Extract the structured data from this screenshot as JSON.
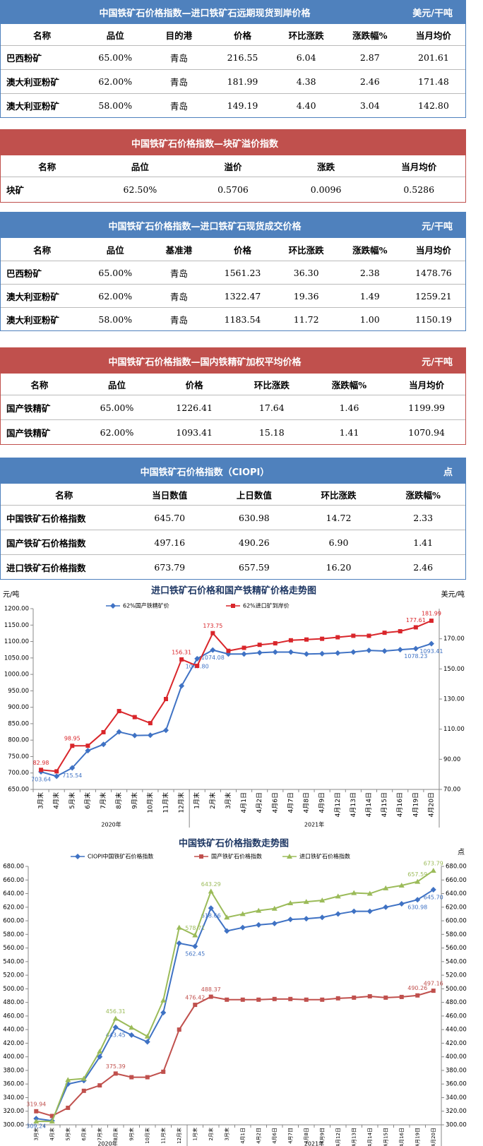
{
  "tables": [
    {
      "title": "中国铁矿石价格指数—进口铁矿石远期现货到岸价格",
      "unit": "美元/干吨",
      "color": "#4f81bd",
      "columns": [
        "名称",
        "品位",
        "目的港",
        "价格",
        "环比涨跌",
        "涨跌幅%",
        "当月均价"
      ],
      "rows": [
        [
          "巴西粉矿",
          "65.00%",
          "青岛",
          "216.55",
          "6.04",
          "2.87",
          "201.61"
        ],
        [
          "澳大利亚粉矿",
          "62.00%",
          "青岛",
          "181.99",
          "4.38",
          "2.46",
          "171.48"
        ],
        [
          "澳大利亚粉矿",
          "58.00%",
          "青岛",
          "149.19",
          "4.40",
          "3.04",
          "142.80"
        ]
      ]
    },
    {
      "title": "中国铁矿石价格指数—块矿溢价指数",
      "color": "#c0504d",
      "columns": [
        "名称",
        "品位",
        "溢价",
        "涨跌",
        "当月均价"
      ],
      "rows": [
        [
          "块矿",
          "62.50%",
          "0.5706",
          "0.0096",
          "0.5286"
        ]
      ]
    },
    {
      "title": "中国铁矿石价格指数—进口铁矿石现货成交价格",
      "unit": "元/干吨",
      "color": "#4f81bd",
      "columns": [
        "名称",
        "品位",
        "基准港",
        "价格",
        "环比涨跌",
        "涨跌幅%",
        "当月均价"
      ],
      "rows": [
        [
          "巴西粉矿",
          "65.00%",
          "青岛",
          "1561.23",
          "36.30",
          "2.38",
          "1478.76"
        ],
        [
          "澳大利亚粉矿",
          "62.00%",
          "青岛",
          "1322.47",
          "19.36",
          "1.49",
          "1259.21"
        ],
        [
          "澳大利亚粉矿",
          "58.00%",
          "青岛",
          "1183.54",
          "11.72",
          "1.00",
          "1150.19"
        ]
      ]
    },
    {
      "title": "中国铁矿石价格指数—国内铁精矿加权平均价格",
      "unit": "元/干吨",
      "color": "#c0504d",
      "columns": [
        "名称",
        "品位",
        "价格",
        "环比涨跌",
        "涨跌幅%",
        "当月均价"
      ],
      "rows": [
        [
          "国产铁精矿",
          "65.00%",
          "1226.41",
          "17.64",
          "1.46",
          "1199.99"
        ],
        [
          "国产铁精矿",
          "62.00%",
          "1093.41",
          "15.18",
          "1.41",
          "1070.94"
        ]
      ]
    },
    {
      "title": "中国铁矿石价格指数（CIOPI）",
      "unit": "点",
      "color": "#4f81bd",
      "columns": [
        "名称",
        "当日数值",
        "上日数值",
        "环比涨跌",
        "涨跌幅%"
      ],
      "rows": [
        [
          "中国铁矿石价格指数",
          "645.70",
          "630.98",
          "14.72",
          "2.33"
        ],
        [
          "国产铁矿石价格指数",
          "497.16",
          "490.26",
          "6.90",
          "1.41"
        ],
        [
          "进口铁矿石价格指数",
          "673.79",
          "657.59",
          "16.20",
          "2.46"
        ]
      ]
    }
  ],
  "chart_data": [
    {
      "type": "line",
      "title": "进口铁矿石价格和国产铁精矿价格走势图",
      "ylabel": "元/吨",
      "y2label": "美元/吨",
      "grid": false,
      "categories": [
        "3月末",
        "4月末",
        "5月末",
        "6月末",
        "7月末",
        "8月末",
        "9月末",
        "10月末",
        "11月末",
        "12月末",
        "1月末",
        "2月末",
        "3月末",
        "4月1日",
        "4月2日",
        "4月6日",
        "4月7日",
        "4月8日",
        "4月9日",
        "4月12日",
        "4月13日",
        "4月14日",
        "4月15日",
        "4月16日",
        "4月19日",
        "4月20日"
      ],
      "x_groups": [
        {
          "label": "2020年",
          "first": 0,
          "last": 9
        },
        {
          "label": "2021年",
          "first": 10,
          "last": 25
        }
      ],
      "ylim": [
        650,
        1200
      ],
      "yticks": [
        {
          "value": 650,
          "label": "650.00"
        },
        {
          "value": 700,
          "label": "700.00"
        },
        {
          "value": 750,
          "label": "750.00"
        },
        {
          "value": 800,
          "label": "800.00"
        },
        {
          "value": 850,
          "label": "850.00"
        },
        {
          "value": 900,
          "label": "900.00"
        },
        {
          "value": 950,
          "label": "950.00"
        },
        {
          "value": 1000,
          "label": "1000.00"
        },
        {
          "value": 1050,
          "label": "1050.00"
        },
        {
          "value": 1100,
          "label": "1100.00"
        },
        {
          "value": 1150,
          "label": "1150.00"
        },
        {
          "value": 1200,
          "label": "1200.00"
        }
      ],
      "y2lim": [
        70,
        190
      ],
      "y2ticks": [
        {
          "value": 70,
          "label": "70.00"
        },
        {
          "value": 90,
          "label": "90.00"
        },
        {
          "value": 110,
          "label": "110.00"
        },
        {
          "value": 130,
          "label": "130.00"
        },
        {
          "value": 150,
          "label": "150.00"
        },
        {
          "value": 170,
          "label": "170.00"
        }
      ],
      "series": [
        {
          "name": "62%国产铁精矿价",
          "color": "#3f72c4",
          "marker": "diamond",
          "label_position": "below",
          "values": [
            703.64,
            690,
            715.54,
            768,
            787,
            825,
            814,
            815,
            830,
            965,
            1047.8,
            1074.08,
            1062,
            1062,
            1066,
            1068,
            1068,
            1062,
            1063,
            1065,
            1068,
            1073,
            1071,
            1075,
            1078.23,
            1093.41
          ],
          "value_labels": [
            "703.64",
            null,
            "715.54",
            null,
            null,
            null,
            null,
            null,
            null,
            null,
            "1047.80",
            "1074.08",
            null,
            null,
            null,
            null,
            null,
            null,
            null,
            null,
            null,
            null,
            null,
            null,
            "1078.23",
            "1093.41"
          ]
        },
        {
          "name": "62%进口矿到岸价",
          "color": "#d9262b",
          "marker": "square",
          "axis": "y2",
          "label_position": "above",
          "values": [
            82.98,
            82,
            98.95,
            99,
            108,
            122,
            118,
            114,
            130,
            156.31,
            152,
            173.75,
            162,
            164,
            166,
            167,
            169,
            169.5,
            170,
            171,
            172,
            172,
            174,
            175,
            177.61,
            181.99
          ],
          "value_labels": [
            "82.98",
            null,
            "98.95",
            null,
            null,
            null,
            null,
            null,
            null,
            "156.31",
            null,
            "173.75",
            null,
            null,
            null,
            null,
            null,
            null,
            null,
            null,
            null,
            null,
            null,
            null,
            "177.61",
            "181.99"
          ]
        }
      ]
    },
    {
      "type": "line",
      "title": "中国铁矿石价格指数走势图",
      "y2label": "点",
      "grid": false,
      "categories": [
        "3月末",
        "4月末",
        "5月末",
        "6月末",
        "7月末",
        "8月末",
        "9月末",
        "10月末",
        "11月末",
        "12月末",
        "1月末",
        "2月末",
        "3月末",
        "4月1日",
        "4月2日",
        "4月6日",
        "4月7日",
        "4月8日",
        "4月9日",
        "4月12日",
        "4月13日",
        "4月14日",
        "4月15日",
        "4月16日",
        "4月19日",
        "4月20日"
      ],
      "x_groups": [
        {
          "label": "2020年",
          "first": 0,
          "last": 9
        },
        {
          "label": "2021年",
          "first": 10,
          "last": 25
        }
      ],
      "ylim": [
        300,
        680
      ],
      "yticks": [
        {
          "value": 300,
          "label": "300.00"
        },
        {
          "value": 320,
          "label": "320.00"
        },
        {
          "value": 340,
          "label": "340.00"
        },
        {
          "value": 360,
          "label": "360.00"
        },
        {
          "value": 380,
          "label": "380.00"
        },
        {
          "value": 400,
          "label": "400.00"
        },
        {
          "value": 420,
          "label": "420.00"
        },
        {
          "value": 440,
          "label": "440.00"
        },
        {
          "value": 460,
          "label": "460.00"
        },
        {
          "value": 480,
          "label": "480.00"
        },
        {
          "value": 500,
          "label": "500.00"
        },
        {
          "value": 520,
          "label": "520.00"
        },
        {
          "value": 540,
          "label": "540.00"
        },
        {
          "value": 560,
          "label": "560.00"
        },
        {
          "value": 580,
          "label": "580.00"
        },
        {
          "value": 600,
          "label": "600.00"
        },
        {
          "value": 620,
          "label": "620.00"
        },
        {
          "value": 640,
          "label": "640.00"
        },
        {
          "value": 660,
          "label": "660.00"
        },
        {
          "value": 680,
          "label": "680.00"
        }
      ],
      "y2lim": [
        300,
        680
      ],
      "y2ticks": [
        {
          "value": 300,
          "label": "300.00"
        },
        {
          "value": 320,
          "label": "320.00"
        },
        {
          "value": 340,
          "label": "340.00"
        },
        {
          "value": 360,
          "label": "360.00"
        },
        {
          "value": 380,
          "label": "380.00"
        },
        {
          "value": 400,
          "label": "400.00"
        },
        {
          "value": 420,
          "label": "420.00"
        },
        {
          "value": 440,
          "label": "440.00"
        },
        {
          "value": 460,
          "label": "460.00"
        },
        {
          "value": 480,
          "label": "480.00"
        },
        {
          "value": 500,
          "label": "500.00"
        },
        {
          "value": 520,
          "label": "520.00"
        },
        {
          "value": 540,
          "label": "540.00"
        },
        {
          "value": 560,
          "label": "560.00"
        },
        {
          "value": 580,
          "label": "580.00"
        },
        {
          "value": 600,
          "label": "600.00"
        },
        {
          "value": 620,
          "label": "620.00"
        },
        {
          "value": 640,
          "label": "640.00"
        },
        {
          "value": 660,
          "label": "660.00"
        },
        {
          "value": 680,
          "label": "680.00"
        }
      ],
      "series": [
        {
          "name": "CIOPI中国铁矿石价格指数",
          "color": "#3f72c4",
          "marker": "diamond",
          "label_position": "below",
          "values": [
            309.24,
            306,
            360,
            365,
            400,
            443.45,
            432,
            422,
            465,
            567,
            562.45,
            618.66,
            585,
            590,
            594,
            596,
            602,
            603,
            605,
            610,
            614,
            614,
            620,
            625,
            630.98,
            645.7
          ],
          "value_labels": [
            "309.24",
            null,
            null,
            null,
            null,
            "443.45",
            null,
            null,
            null,
            null,
            "562.45",
            "618.66",
            null,
            null,
            null,
            null,
            null,
            null,
            null,
            null,
            null,
            null,
            null,
            null,
            "630.98",
            "645.70"
          ]
        },
        {
          "name": "国产铁矿石价格指数",
          "color": "#c0504d",
          "marker": "square",
          "label_position": "above",
          "values": [
            319.94,
            313,
            325,
            350,
            358,
            375.39,
            370,
            370,
            378,
            440,
            476.42,
            488.37,
            484,
            484,
            484,
            485,
            485,
            484,
            484,
            486,
            487,
            489,
            487,
            488,
            490.26,
            497.16
          ],
          "value_labels": [
            "319.94",
            null,
            null,
            null,
            null,
            "375.39",
            null,
            null,
            null,
            null,
            "476.42",
            "488.37",
            null,
            null,
            null,
            null,
            null,
            null,
            null,
            null,
            null,
            null,
            null,
            null,
            "490.26",
            "497.16"
          ]
        },
        {
          "name": "进口铁矿石价格指数",
          "color": "#9bbb59",
          "marker": "triangle",
          "label_position": "above",
          "values": [
            305,
            305,
            366,
            368,
            408,
            456.31,
            443,
            430,
            483,
            590,
            578.71,
            643.29,
            605,
            610,
            615,
            618,
            626,
            628,
            630,
            636,
            641,
            640,
            648,
            652,
            657.59,
            673.79
          ],
          "value_labels": [
            null,
            null,
            null,
            null,
            null,
            "456.31",
            null,
            null,
            null,
            null,
            "578.71",
            "643.29",
            null,
            null,
            null,
            null,
            null,
            null,
            null,
            null,
            null,
            null,
            null,
            null,
            "657.59",
            "673.79"
          ]
        }
      ]
    }
  ]
}
